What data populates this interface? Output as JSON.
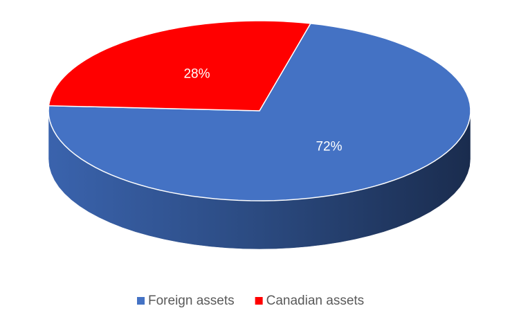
{
  "chart_data": {
    "type": "pie3d",
    "categories": [
      "Foreign assets",
      "Canadian assets"
    ],
    "values": [
      72,
      28
    ],
    "value_labels": [
      "72%",
      "28%"
    ],
    "colors": [
      "#4472c4",
      "#ff0000"
    ],
    "legend": "bottom"
  }
}
